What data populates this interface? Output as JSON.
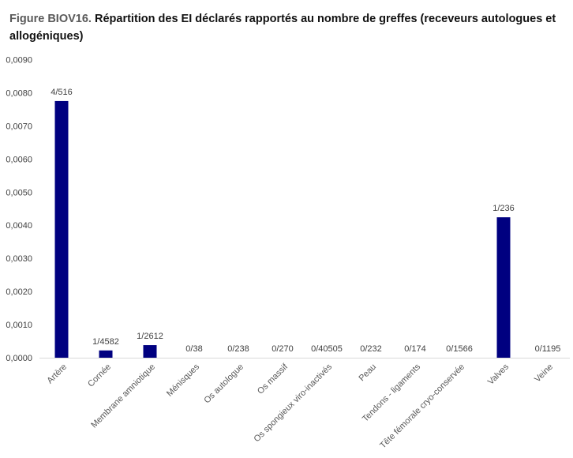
{
  "figure": {
    "number": "Figure BIOV16.",
    "title": " Répartition des EI déclarés rapportés au nombre de greffes (receveurs autologues et allogéniques)"
  },
  "chart_data": {
    "type": "bar",
    "categories": [
      "Artère",
      "Cornée",
      "Membrane amniotique",
      "Ménisques",
      "Os autologue",
      "Os massif",
      "Os spongieux viro-inactivés",
      "Peau",
      "Tendons - ligaments",
      "Tête fémorale cryo-conservée",
      "Valves",
      "Veine"
    ],
    "values": [
      0.00775,
      0.00022,
      0.00038,
      0,
      0,
      0,
      0,
      0,
      0,
      0,
      0.00424,
      0
    ],
    "data_labels": [
      "4/516",
      "1/4582",
      "1/2612",
      "0/38",
      "0/238",
      "0/270",
      "0/40505",
      "0/232",
      "0/174",
      "0/1566",
      "1/236",
      "0/1195"
    ],
    "yticks": [
      "0,0000",
      "0,0010",
      "0,0020",
      "0,0030",
      "0,0040",
      "0,0050",
      "0,0060",
      "0,0070",
      "0,0080",
      "0,0090"
    ],
    "ylim": [
      0,
      0.009
    ],
    "xlabel": "",
    "ylabel": "",
    "grid": false,
    "bar_color": "#000080"
  }
}
